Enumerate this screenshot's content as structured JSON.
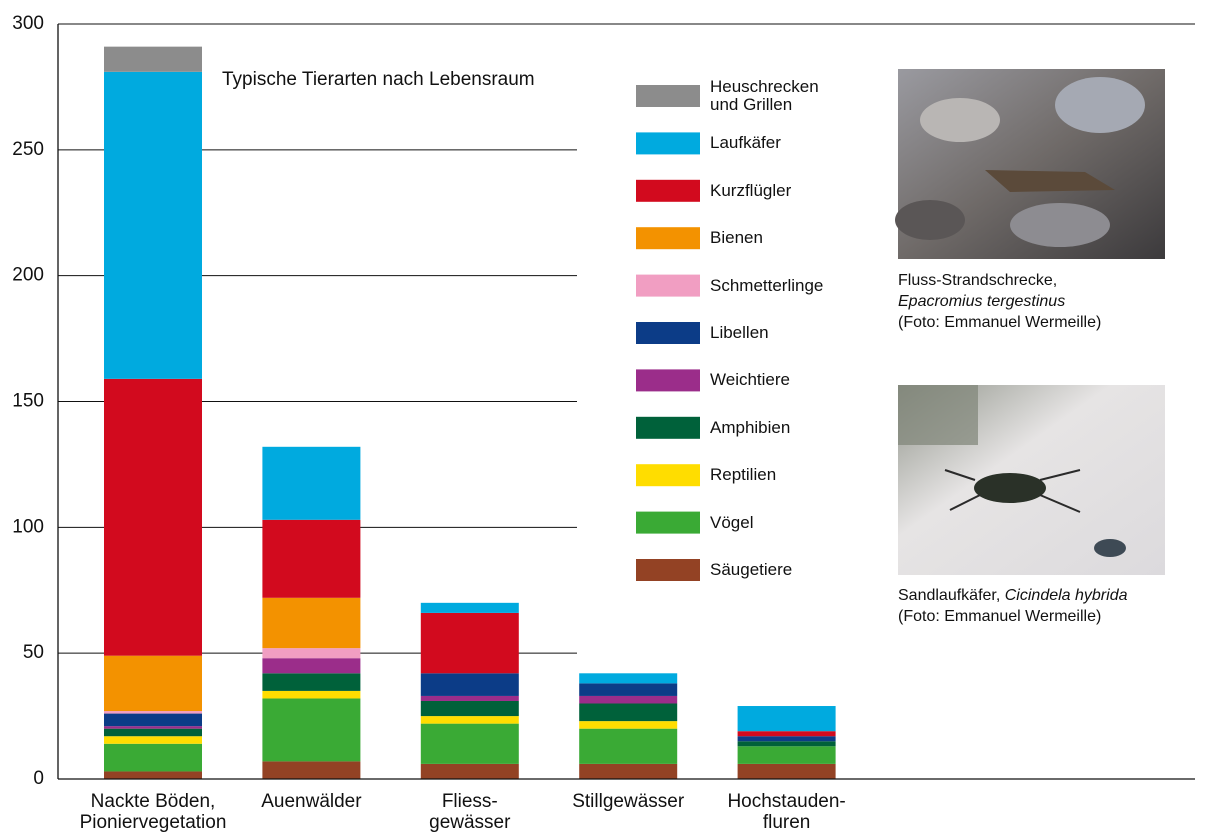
{
  "chart_data": {
    "type": "bar",
    "stacked": true,
    "title": "Typische Tierarten nach Lebensraum",
    "categories": [
      [
        "Nackte Böden,",
        "Pioniervegetation"
      ],
      [
        "Auenwälder"
      ],
      [
        "Fliess-",
        "gewässer"
      ],
      [
        "Stillgewässer"
      ],
      [
        "Hochstauden-",
        "fluren"
      ]
    ],
    "series": [
      {
        "name": "Säugetiere",
        "color": "#934224",
        "values": [
          3,
          7,
          6,
          6,
          6
        ]
      },
      {
        "name": "Vögel",
        "color": "#3aaa35",
        "values": [
          11,
          25,
          16,
          14,
          7
        ]
      },
      {
        "name": "Reptilien",
        "color": "#ffdd00",
        "values": [
          3,
          3,
          3,
          3,
          0
        ]
      },
      {
        "name": "Amphibien",
        "color": "#00613a",
        "values": [
          3,
          7,
          6,
          7,
          2
        ]
      },
      {
        "name": "Weichtiere",
        "color": "#9b2d8a",
        "values": [
          1,
          6,
          2,
          3,
          0
        ]
      },
      {
        "name": "Libellen",
        "color": "#0c3c87",
        "values": [
          5,
          0,
          9,
          5,
          2
        ]
      },
      {
        "name": "Schmetterlinge",
        "color": "#f19ec2",
        "values": [
          1,
          4,
          0,
          0,
          0
        ]
      },
      {
        "name": "Bienen",
        "color": "#f39200",
        "values": [
          22,
          20,
          0,
          0,
          0
        ]
      },
      {
        "name": "Kurzflügler",
        "color": "#d20a1e",
        "values": [
          110,
          31,
          24,
          0,
          2
        ]
      },
      {
        "name": "Laufkäfer",
        "color": "#00aadf",
        "values": [
          122,
          29,
          4,
          4,
          10
        ]
      },
      {
        "name": "Heuschrecken und Grillen",
        "color": "#8c8c8c",
        "values": [
          10,
          0,
          0,
          0,
          0
        ]
      }
    ],
    "ylim": [
      0,
      300
    ],
    "yticks": [
      0,
      50,
      100,
      150,
      200,
      250,
      300
    ],
    "grid": true
  },
  "photos": [
    {
      "name": "Fluss-Strandschrecke,",
      "species": "Epacromius tergestinus",
      "credit": "(Foto: Emmanuel Wermeille)"
    },
    {
      "name": "Sandlaufkäfer,",
      "species": "Cicindela hybrida",
      "credit": "(Foto: Emmanuel Wermeille)"
    }
  ]
}
